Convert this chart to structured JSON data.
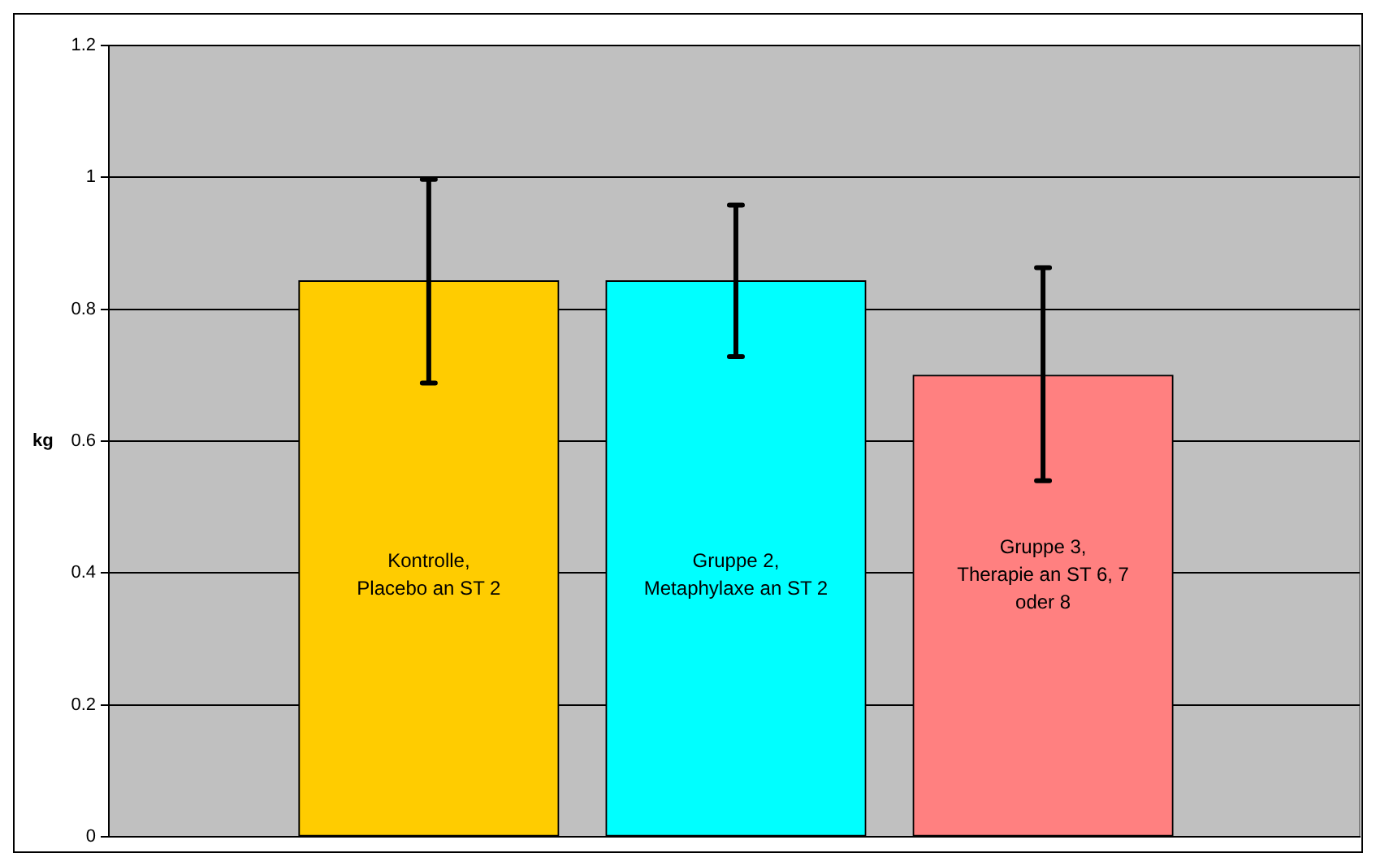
{
  "chart_data": {
    "type": "bar",
    "ylabel": "kg",
    "categories": [
      "Kontrolle,\nPlacebo an ST 2",
      "Gruppe 2,\nMetaphylaxe an ST 2",
      "Gruppe 3,\nTherapie an ST 6, 7\noder 8"
    ],
    "values": [
      0.843,
      0.843,
      0.7
    ],
    "colors": [
      "#ffcc00",
      "#00ffff",
      "#ff8080"
    ],
    "errors": [
      [
        0.688,
        0.997
      ],
      [
        0.728,
        0.958
      ],
      [
        0.54,
        0.863
      ]
    ],
    "ylim": [
      0,
      1.2
    ],
    "yticks": [
      0,
      0.2,
      0.4,
      0.6,
      0.8,
      1,
      1.2
    ],
    "grid": "y",
    "tick_labels": "y"
  }
}
